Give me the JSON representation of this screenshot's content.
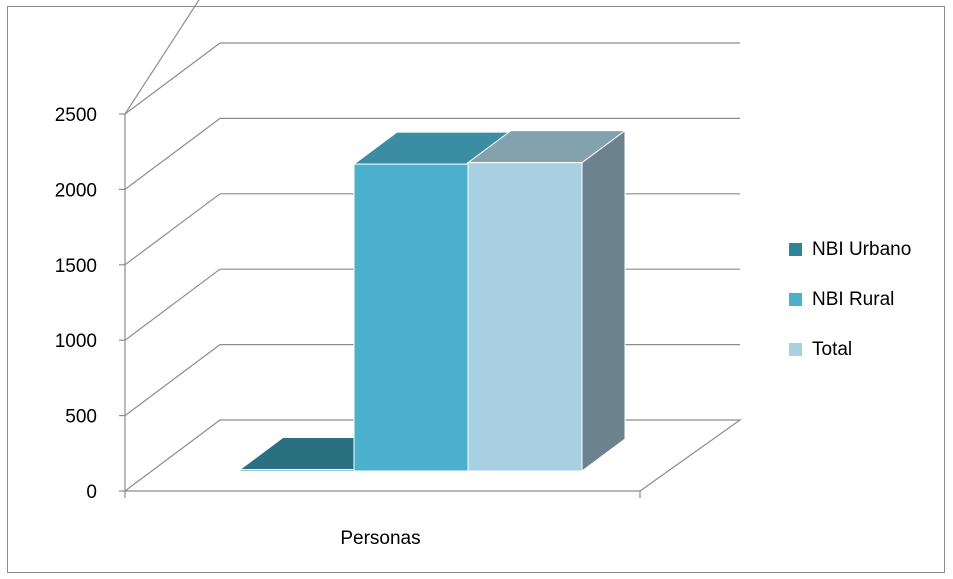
{
  "chart_data": {
    "type": "bar",
    "categories": [
      "Personas"
    ],
    "series": [
      {
        "name": "NBI Urbano",
        "values": [
          10
        ]
      },
      {
        "name": "NBI Rural",
        "values": [
          2035
        ]
      },
      {
        "name": "Total",
        "values": [
          2045
        ]
      }
    ],
    "yticks": [
      "0",
      "500",
      "1000",
      "1500",
      "2000",
      "2500"
    ],
    "ylim": [
      0,
      2500
    ],
    "grid": true,
    "legend_position": "right",
    "style": "3d-clustered-column",
    "colors": {
      "NBI Urbano": {
        "front": "#2f8597",
        "top": "#2b7080",
        "side": "#246272"
      },
      "NBI Rural": {
        "front": "#4bb0cb",
        "top": "#3a8da2",
        "side": "#34809a"
      },
      "Total": {
        "front": "#a9d0e0",
        "top": "#84a2ad",
        "side": "#6c828c"
      }
    }
  }
}
